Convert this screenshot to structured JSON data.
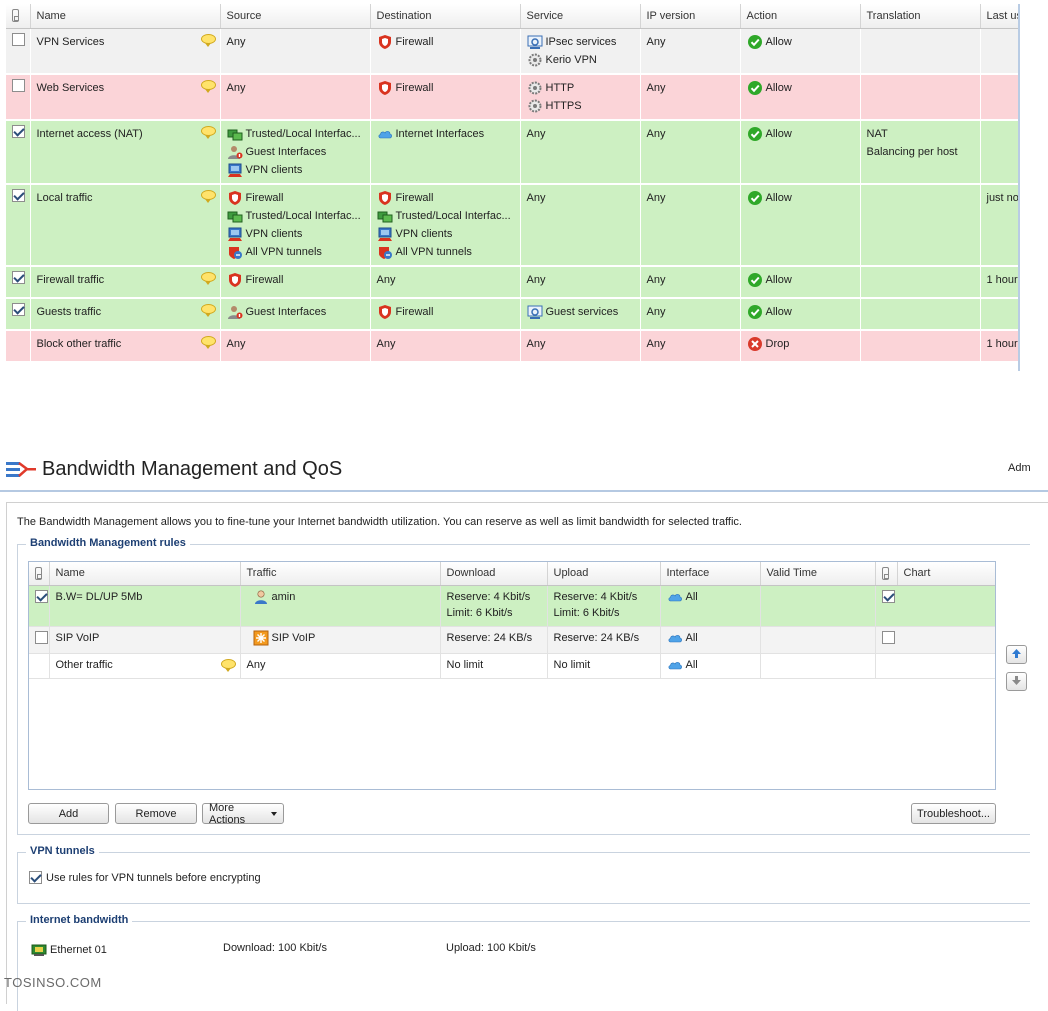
{
  "traffic_rules": {
    "columns": [
      "Name",
      "Source",
      "Destination",
      "Service",
      "IP version",
      "Action",
      "Translation",
      "Last us"
    ],
    "rows": [
      {
        "name": "VPN Services",
        "checked": false,
        "has_checkbox": true,
        "color": "gray",
        "source": [
          {
            "icon": "none",
            "text": "Any"
          }
        ],
        "destination": [
          {
            "icon": "firewall-icon",
            "text": "Firewall"
          }
        ],
        "service": [
          {
            "icon": "ipsec-icon",
            "text": "IPsec services"
          },
          {
            "icon": "service-gear-icon",
            "text": "Kerio VPN"
          }
        ],
        "ip_version": "Any",
        "action": "Allow",
        "action_icon": "allow-icon",
        "translation": [],
        "last_used": ""
      },
      {
        "name": "Web Services",
        "checked": false,
        "has_checkbox": true,
        "color": "red",
        "source": [
          {
            "icon": "none",
            "text": "Any"
          }
        ],
        "destination": [
          {
            "icon": "firewall-icon",
            "text": "Firewall"
          }
        ],
        "service": [
          {
            "icon": "service-gear-icon",
            "text": "HTTP"
          },
          {
            "icon": "service-gear-icon",
            "text": "HTTPS"
          }
        ],
        "ip_version": "Any",
        "action": "Allow",
        "action_icon": "allow-icon",
        "translation": [],
        "last_used": ""
      },
      {
        "name": "Internet access (NAT)",
        "checked": true,
        "has_checkbox": true,
        "color": "green",
        "source": [
          {
            "icon": "trusted-interfaces-icon",
            "text": "Trusted/Local Interfac..."
          },
          {
            "icon": "guest-interfaces-icon",
            "text": "Guest Interfaces"
          },
          {
            "icon": "vpn-clients-icon",
            "text": "VPN clients"
          }
        ],
        "destination": [
          {
            "icon": "internet-cloud-icon",
            "text": "Internet Interfaces"
          }
        ],
        "service": [
          {
            "icon": "none",
            "text": "Any"
          }
        ],
        "ip_version": "Any",
        "action": "Allow",
        "action_icon": "allow-icon",
        "translation": [
          "NAT",
          "Balancing per host"
        ],
        "last_used": ""
      },
      {
        "name": "Local traffic",
        "checked": true,
        "has_checkbox": true,
        "color": "green",
        "source": [
          {
            "icon": "firewall-icon",
            "text": "Firewall"
          },
          {
            "icon": "trusted-interfaces-icon",
            "text": "Trusted/Local Interfac..."
          },
          {
            "icon": "vpn-clients-icon",
            "text": "VPN clients"
          },
          {
            "icon": "vpn-tunnels-icon",
            "text": "All VPN tunnels"
          }
        ],
        "destination": [
          {
            "icon": "firewall-icon",
            "text": "Firewall"
          },
          {
            "icon": "trusted-interfaces-icon",
            "text": "Trusted/Local Interfac..."
          },
          {
            "icon": "vpn-clients-icon",
            "text": "VPN clients"
          },
          {
            "icon": "vpn-tunnels-icon",
            "text": "All VPN tunnels"
          }
        ],
        "service": [
          {
            "icon": "none",
            "text": "Any"
          }
        ],
        "ip_version": "Any",
        "action": "Allow",
        "action_icon": "allow-icon",
        "translation": [],
        "last_used": "just no"
      },
      {
        "name": "Firewall traffic",
        "checked": true,
        "has_checkbox": true,
        "color": "green",
        "source": [
          {
            "icon": "firewall-icon",
            "text": "Firewall"
          }
        ],
        "destination": [
          {
            "icon": "none",
            "text": "Any"
          }
        ],
        "service": [
          {
            "icon": "none",
            "text": "Any"
          }
        ],
        "ip_version": "Any",
        "action": "Allow",
        "action_icon": "allow-icon",
        "translation": [],
        "last_used": "1 hour"
      },
      {
        "name": "Guests traffic",
        "checked": true,
        "has_checkbox": true,
        "color": "green",
        "source": [
          {
            "icon": "guest-interfaces-icon",
            "text": "Guest Interfaces"
          }
        ],
        "destination": [
          {
            "icon": "firewall-icon",
            "text": "Firewall"
          }
        ],
        "service": [
          {
            "icon": "ipsec-icon",
            "text": "Guest services"
          }
        ],
        "ip_version": "Any",
        "action": "Allow",
        "action_icon": "allow-icon",
        "translation": [],
        "last_used": ""
      },
      {
        "name": "Block other traffic",
        "checked": false,
        "has_checkbox": false,
        "color": "red",
        "source": [
          {
            "icon": "none",
            "text": "Any"
          }
        ],
        "destination": [
          {
            "icon": "none",
            "text": "Any"
          }
        ],
        "service": [
          {
            "icon": "none",
            "text": "Any"
          }
        ],
        "ip_version": "Any",
        "action": "Drop",
        "action_icon": "drop-icon",
        "translation": [],
        "last_used": "1 hour"
      }
    ]
  },
  "bandwidth": {
    "title": "Bandwidth Management and QoS",
    "user": "Adm",
    "description": "The Bandwidth Management allows you to fine-tune your Internet bandwidth utilization. You can reserve as well as limit bandwidth for selected traffic.",
    "rules_legend": "Bandwidth Management rules",
    "columns": [
      "Name",
      "Traffic",
      "Download",
      "Upload",
      "Interface",
      "Valid Time",
      "Chart"
    ],
    "rules": [
      {
        "name": "B.W= DL/UP 5Mb",
        "has_checkbox": true,
        "checked": true,
        "color": "green",
        "traffic_icon": "user-icon",
        "traffic": "amin",
        "download": [
          "Reserve: 4 Kbit/s",
          "Limit: 6 Kbit/s"
        ],
        "upload": [
          "Reserve: 4 Kbit/s",
          "Limit: 6 Kbit/s"
        ],
        "interface": "All",
        "valid_time": "",
        "chart_checked": true,
        "chart_box": true
      },
      {
        "name": "SIP VoIP",
        "has_checkbox": true,
        "checked": false,
        "color": "gray",
        "traffic_icon": "voip-icon",
        "traffic": "SIP VoIP",
        "download": [
          "Reserve: 24 KB/s"
        ],
        "upload": [
          "Reserve: 24 KB/s"
        ],
        "interface": "All",
        "valid_time": "",
        "chart_checked": false,
        "chart_box": true
      },
      {
        "name": "Other traffic",
        "has_checkbox": false,
        "checked": false,
        "color": "white",
        "traffic_icon": "none",
        "traffic": "Any",
        "download": [
          "No limit"
        ],
        "upload": [
          "No limit"
        ],
        "interface": "All",
        "valid_time": "",
        "chart_checked": false,
        "chart_box": false
      }
    ],
    "buttons": {
      "add": "Add",
      "remove": "Remove",
      "more_actions": "More Actions",
      "troubleshoot": "Troubleshoot..."
    },
    "vpn_tunnels": {
      "legend": "VPN tunnels",
      "checkbox_label": "Use rules for VPN tunnels before encrypting",
      "checked": true
    },
    "internet_bandwidth": {
      "legend": "Internet bandwidth",
      "interface_name": "Ethernet 01",
      "download": "Download: 100 Kbit/s",
      "upload": "Upload: 100 Kbit/s"
    }
  },
  "watermark": "TOSINSO.COM",
  "colors": {
    "allow": "#2fa829",
    "drop": "#d93a2b",
    "firewall": "#d9331f",
    "legend": "#1d3f73",
    "green_row": "#cdf0c2",
    "red_row": "#fbd4d8"
  }
}
